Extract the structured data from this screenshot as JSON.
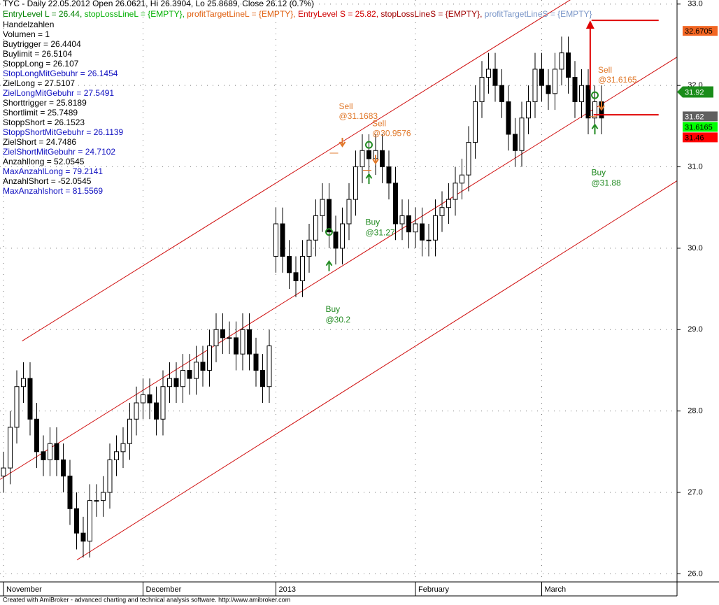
{
  "chart_data": {
    "type": "candlestick",
    "header": "TYC - Daily 22.05.2012 Open 26.0621, Hi 26.3904, Lo 25.8689, Close 26.12 (0.7%)",
    "header_segments": [
      {
        "text": "EntryLevel L = 26.44, ",
        "color": "#008000"
      },
      {
        "text": "stopLossLineL = {EMPTY}, ",
        "color": "#00b000"
      },
      {
        "text": "profitTargetLineL = {EMPTY}, ",
        "color": "#e06010"
      },
      {
        "text": "EntryLevel S = 25.82, ",
        "color": "#d00000"
      },
      {
        "text": "stopLossLineS = {EMPTY}, ",
        "color": "#a00000"
      },
      {
        "text": "profitTargetLineS = {EMPTY}",
        "color": "#7a96c8"
      }
    ],
    "info_lines": [
      {
        "text": "Handelzahlen",
        "color": "#000000"
      },
      {
        "text": "Volumen = 1",
        "color": "#000000"
      },
      {
        "text": "Buytrigger = 26.4404",
        "color": "#000000"
      },
      {
        "text": "Buylimit = 26.5104",
        "color": "#000000"
      },
      {
        "text": "StoppLong = 26.107",
        "color": "#000000"
      },
      {
        "text": "StopLongMitGebuhr = 26.1454",
        "color": "#1010c0"
      },
      {
        "text": "ZielLong = 27.5107",
        "color": "#000000"
      },
      {
        "text": "ZielLongMitGebuhr = 27.5491",
        "color": "#1010c0"
      },
      {
        "text": "Shorttrigger = 25.8189",
        "color": "#000000"
      },
      {
        "text": "Shortlimit = 25.7489",
        "color": "#000000"
      },
      {
        "text": "StoppShort = 26.1523",
        "color": "#000000"
      },
      {
        "text": "StoppShortMitGebuhr = 26.1139",
        "color": "#1010c0"
      },
      {
        "text": "ZielShort = 24.7486",
        "color": "#000000"
      },
      {
        "text": "ZielShortMitGebuhr = 24.7102",
        "color": "#1010c0"
      },
      {
        "text": "Anzahllong = 52.0545",
        "color": "#000000"
      },
      {
        "text": "MaxAnzahlLong = 79.2141",
        "color": "#1010c0"
      },
      {
        "text": "AnzahlShort = -52.0545",
        "color": "#000000"
      },
      {
        "text": "MaxAnzahlshort = 81.5569",
        "color": "#1010c0"
      }
    ],
    "categories": [
      "November",
      null,
      null,
      null,
      null,
      null,
      null,
      null,
      null,
      null,
      null,
      null,
      null,
      null,
      null,
      null,
      null,
      null,
      null,
      null,
      null,
      "December",
      null,
      null,
      null,
      null,
      null,
      null,
      null,
      null,
      null,
      null,
      null,
      null,
      null,
      null,
      null,
      null,
      null,
      null,
      null,
      "2013",
      null,
      null,
      null,
      null,
      null,
      null,
      null,
      null,
      null,
      null,
      null,
      null,
      null,
      null,
      null,
      null,
      null,
      null,
      null,
      null,
      "February",
      null,
      null,
      null,
      null,
      null,
      null,
      null,
      null,
      null,
      null,
      null,
      null,
      null,
      null,
      null,
      null,
      null,
      null,
      "March",
      null,
      null,
      null,
      null,
      null,
      null,
      null,
      null,
      null
    ],
    "open": [
      27.2,
      27.3,
      27.8,
      28.3,
      28.4,
      27.9,
      27.5,
      27.4,
      27.6,
      27.4,
      27.2,
      26.8,
      26.5,
      26.4,
      26.9,
      26.9,
      27.0,
      27.4,
      27.5,
      27.6,
      27.9,
      28.1,
      28.2,
      28.1,
      27.9,
      28.3,
      28.4,
      28.3,
      28.5,
      28.4,
      28.6,
      28.5,
      28.8,
      29.0,
      28.9,
      28.9,
      28.7,
      29.0,
      28.7,
      28.5,
      28.3,
      29.9,
      30.3,
      29.9,
      29.7,
      29.6,
      29.9,
      30.1,
      30.4,
      30.6,
      30.2,
      30.0,
      30.3,
      30.6,
      31.0,
      31.2,
      31.1,
      31.2,
      31.0,
      30.8,
      30.3,
      30.4,
      30.2,
      30.3,
      30.1,
      30.1,
      30.4,
      30.5,
      30.6,
      30.8,
      30.9,
      31.3,
      31.8,
      32.1,
      32.2,
      32.0,
      31.8,
      31.4,
      31.2,
      31.6,
      31.8,
      32.2,
      32.0,
      31.9,
      32.2,
      32.4,
      32.1,
      31.8,
      32.0,
      31.6,
      31.8
    ],
    "high": [
      27.5,
      28.0,
      28.5,
      28.6,
      28.6,
      28.1,
      27.7,
      27.8,
      27.8,
      27.6,
      27.4,
      27.0,
      26.7,
      27.1,
      27.1,
      27.2,
      27.6,
      27.7,
      27.8,
      28.1,
      28.3,
      28.4,
      28.4,
      28.3,
      28.5,
      28.6,
      28.6,
      28.7,
      28.7,
      28.8,
      28.8,
      29.0,
      29.2,
      29.2,
      29.1,
      29.1,
      29.2,
      29.2,
      28.9,
      28.7,
      29.0,
      30.5,
      30.5,
      30.1,
      29.9,
      30.1,
      30.3,
      30.6,
      30.8,
      30.8,
      30.4,
      30.5,
      30.8,
      31.2,
      31.4,
      31.4,
      31.4,
      31.4,
      31.2,
      31.0,
      30.6,
      30.6,
      30.5,
      30.5,
      30.3,
      30.6,
      30.7,
      30.8,
      31.0,
      31.1,
      31.5,
      32.0,
      32.3,
      32.4,
      32.4,
      32.2,
      32.0,
      31.6,
      31.8,
      32.0,
      32.4,
      32.4,
      32.2,
      32.4,
      32.6,
      32.6,
      32.3,
      32.2,
      32.2,
      32.0,
      32.0
    ],
    "low": [
      27.0,
      27.1,
      27.6,
      28.1,
      27.7,
      27.3,
      27.2,
      27.2,
      27.2,
      27.0,
      26.6,
      26.3,
      26.2,
      26.2,
      26.7,
      26.7,
      26.8,
      27.2,
      27.3,
      27.4,
      27.7,
      27.9,
      27.9,
      27.7,
      27.7,
      28.1,
      28.1,
      28.1,
      28.2,
      28.2,
      28.3,
      28.3,
      28.6,
      28.7,
      28.7,
      28.5,
      28.5,
      28.5,
      28.3,
      28.1,
      28.1,
      29.7,
      29.7,
      29.5,
      29.4,
      29.4,
      29.7,
      29.9,
      30.2,
      30.0,
      29.8,
      29.8,
      30.1,
      30.4,
      30.8,
      30.9,
      30.9,
      30.8,
      30.6,
      30.1,
      30.1,
      30.0,
      30.0,
      29.9,
      29.9,
      29.9,
      30.2,
      30.3,
      30.4,
      30.6,
      30.7,
      31.1,
      31.6,
      31.9,
      31.8,
      31.6,
      31.2,
      31.0,
      31.0,
      31.4,
      31.6,
      31.8,
      31.7,
      31.7,
      32.0,
      31.9,
      31.6,
      31.6,
      31.4,
      31.4,
      31.4
    ],
    "close": [
      27.3,
      27.8,
      28.3,
      28.4,
      27.9,
      27.5,
      27.4,
      27.6,
      27.4,
      27.2,
      26.8,
      26.5,
      26.4,
      26.9,
      26.9,
      27.0,
      27.4,
      27.5,
      27.6,
      27.9,
      28.1,
      28.2,
      28.1,
      27.9,
      28.3,
      28.4,
      28.3,
      28.5,
      28.4,
      28.6,
      28.5,
      28.8,
      29.0,
      28.9,
      28.9,
      28.7,
      29.0,
      28.7,
      28.5,
      28.3,
      28.8,
      30.3,
      29.9,
      29.7,
      29.6,
      29.9,
      30.1,
      30.4,
      30.6,
      30.2,
      30.0,
      30.3,
      30.6,
      31.0,
      31.2,
      31.1,
      31.2,
      31.0,
      30.8,
      30.3,
      30.4,
      30.2,
      30.3,
      30.1,
      30.1,
      30.4,
      30.5,
      30.6,
      30.8,
      30.9,
      31.3,
      31.8,
      32.1,
      32.2,
      32.0,
      31.8,
      31.4,
      31.2,
      31.6,
      31.8,
      32.2,
      32.0,
      31.9,
      32.2,
      32.4,
      32.1,
      31.8,
      32.0,
      31.6,
      31.8,
      31.6
    ],
    "ylim": [
      25.9,
      33.05
    ],
    "yticks": [
      {
        "value": 26,
        "label": "26.0"
      },
      {
        "value": 27,
        "label": "27.0"
      },
      {
        "value": 28,
        "label": "28.0"
      },
      {
        "value": 29,
        "label": "29.0"
      },
      {
        "value": 30,
        "label": "30.0"
      },
      {
        "value": 31,
        "label": "31.0"
      },
      {
        "value": 32,
        "label": "32.0"
      },
      {
        "value": 33,
        "label": "33.0"
      }
    ],
    "grid": true,
    "channel_color": "#d01010",
    "channels": [
      {
        "x": [
          2.8,
          101.4
        ],
        "values": [
          28.86,
          33.87
        ]
      },
      {
        "x": [
          -0.5,
          101.4
        ],
        "values": [
          27.16,
          32.35
        ]
      },
      {
        "x": [
          11.05,
          101.4
        ],
        "values": [
          26.17,
          30.83
        ]
      }
    ],
    "signals": [
      {
        "label": "Buy",
        "value": 30.2,
        "value_label": "@30.2",
        "index": 49,
        "color": "#228b22"
      },
      {
        "label": "Sell",
        "value": 31.1683,
        "value_label": "@31.1683",
        "index": 51,
        "color": "#e0782a"
      },
      {
        "label": "Buy",
        "value": 31.27,
        "value_label": "@31.27",
        "index": 55,
        "color": "#228b22"
      },
      {
        "label": "Sell",
        "value": 30.9576,
        "value_label": "@30.9576",
        "index": 56,
        "color": "#e0782a"
      },
      {
        "label": "Buy",
        "value": 31.88,
        "value_label": "@31.88",
        "index": 89,
        "color": "#228b22"
      },
      {
        "label": "Sell",
        "value": 31.6165,
        "value_label": "@31.6165",
        "index": 90,
        "color": "#e0782a"
      }
    ],
    "levels": [
      {
        "value": 32.8,
        "from": 88.5,
        "to": 98.6,
        "color": "#e00000"
      },
      {
        "value": 31.64,
        "from": 88.8,
        "to": 98.6,
        "color": "#e00000"
      }
    ],
    "target_arrow": {
      "index": 88.3,
      "from": 31.95,
      "to": 32.8,
      "color": "#e00000"
    },
    "price_labels": [
      {
        "value": 32.6705,
        "bg": "#f26522",
        "fg": "#000000"
      },
      {
        "value": 31.92,
        "bg": "#1a8c1a",
        "fg": "#ffffff"
      },
      {
        "value": 31.62,
        "bg": "#606060",
        "fg": "#ffffff"
      },
      {
        "value": 31.6165,
        "bg": "#00ff00",
        "fg": "#000000"
      },
      {
        "value": 31.46,
        "bg": "#ff0000",
        "fg": "#000000"
      }
    ],
    "footer": "Created with AmiBroker - advanced charting and technical analysis software. http://www.amibroker.com"
  }
}
